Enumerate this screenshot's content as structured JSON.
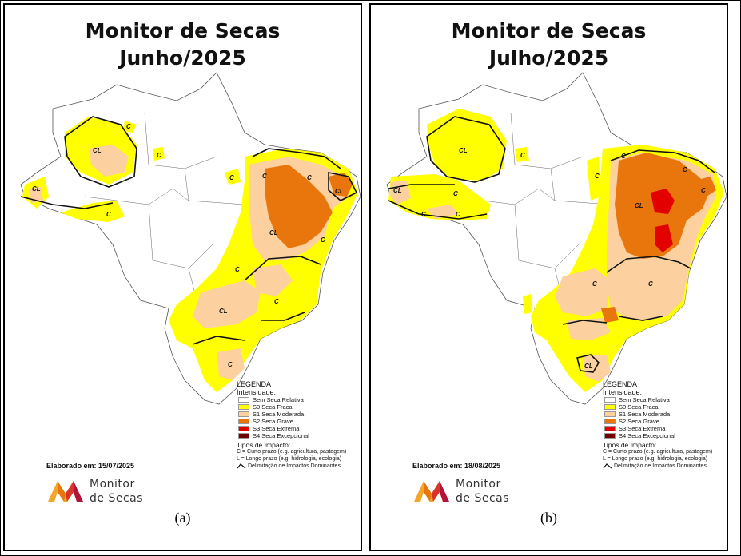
{
  "panels": [
    {
      "title_line1": "Monitor de Secas",
      "title_line2": "Junho/2025",
      "credit": "Elaborado em: 15/07/2025",
      "label": "(a)",
      "impact_marks": [
        "CL",
        "C",
        "C",
        "C",
        "CL",
        "C",
        "C",
        "C",
        "CL",
        "CL",
        "C",
        "C",
        "C",
        "CL",
        "C"
      ]
    },
    {
      "title_line1": "Monitor de Secas",
      "title_line2": "Julho/2025",
      "credit": "Elaborado em: 18/08/2025",
      "label": "(b)",
      "impact_marks": [
        "CL",
        "C",
        "CL",
        "C",
        "C",
        "C",
        "CL",
        "C",
        "C",
        "C",
        "C",
        "C",
        "C",
        "CL"
      ]
    }
  ],
  "legend": {
    "title": "LEGENDA",
    "intensity_label": "Intensidade:",
    "items": [
      {
        "label": "Sem Seca Relativa",
        "color": "#ffffff"
      },
      {
        "label": "S0 Seca Fraca",
        "color": "#ffff00"
      },
      {
        "label": "S1 Seca Moderada",
        "color": "#fcd19f"
      },
      {
        "label": "S2 Seca Grave",
        "color": "#e8760c"
      },
      {
        "label": "S3 Seca Extrema",
        "color": "#e30000"
      },
      {
        "label": "S4 Seca Excepcional",
        "color": "#730000"
      }
    ],
    "impact_title": "Tipos de Impacto:",
    "impact_short": "C = Curto prazo (e.g. agricultura, pastagem)",
    "impact_long": "L = Longo prazo (e.g. hidrologia, ecologia)",
    "delimitation": "Delimitação de Impactos Dominantes"
  },
  "logo": {
    "line1": "Monitor",
    "line2": "de Secas",
    "colors": [
      "#f2a72b",
      "#e8760c",
      "#b3123a"
    ]
  }
}
